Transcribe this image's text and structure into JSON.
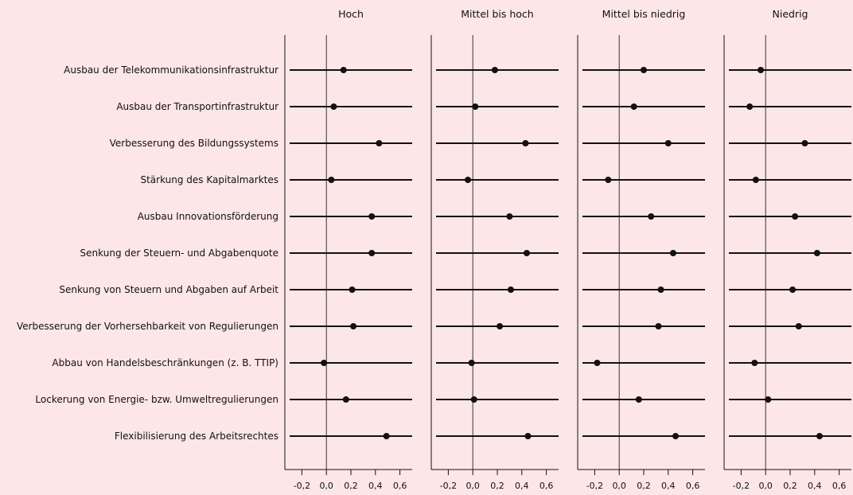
{
  "chart_data": {
    "type": "scatter",
    "x_ticks": [
      "-0,2",
      "0,0",
      "0,2",
      "0,4",
      "0,6"
    ],
    "x_tick_values": [
      -0.2,
      0.0,
      0.2,
      0.4,
      0.6
    ],
    "xlim": [
      -0.3,
      0.7
    ],
    "reference_line": 0.0,
    "categories": [
      "Ausbau der Telekommunikationsinfrastruktur",
      "Ausbau der Transportinfrastruktur",
      "Verbesserung des Bildungssystems",
      "Stärkung des Kapitalmarktes",
      "Ausbau Innovationsförderung",
      "Senkung der Steuern- und Abgabenquote",
      "Senkung von Steuern und Abgaben auf Arbeit",
      "Verbesserung der Vorhersehbarkeit von Regulierungen",
      "Abbau von Handelsbeschränkungen (z. B. TTIP)",
      "Lockerung von Energie- bzw. Umweltregulierungen",
      "Flexibilisierung des Arbeitsrechtes"
    ],
    "series": [
      {
        "name": "Hoch",
        "values": [
          0.14,
          0.06,
          0.43,
          0.04,
          0.37,
          0.37,
          0.21,
          0.22,
          -0.02,
          0.16,
          0.49
        ]
      },
      {
        "name": "Mittel bis hoch",
        "values": [
          0.18,
          0.02,
          0.43,
          -0.04,
          0.3,
          0.44,
          0.31,
          0.22,
          -0.01,
          0.01,
          0.45
        ]
      },
      {
        "name": "Mittel bis niedrig",
        "values": [
          0.2,
          0.12,
          0.4,
          -0.09,
          0.26,
          0.44,
          0.34,
          0.32,
          -0.18,
          0.16,
          0.46
        ]
      },
      {
        "name": "Niedrig",
        "values": [
          -0.04,
          -0.13,
          0.32,
          -0.08,
          0.24,
          0.42,
          0.22,
          0.27,
          -0.09,
          0.02,
          0.44
        ]
      }
    ]
  }
}
